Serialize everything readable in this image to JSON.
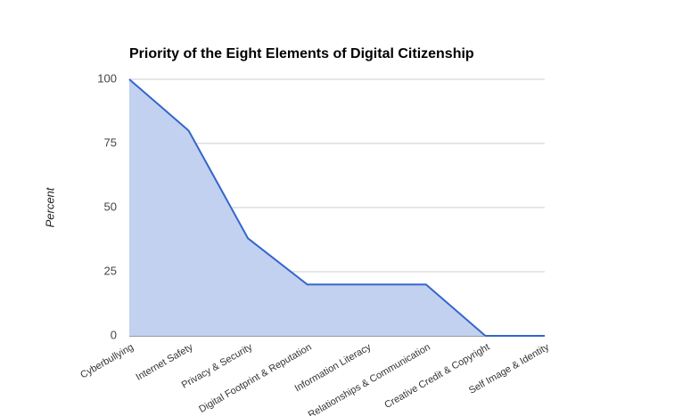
{
  "chart_data": {
    "type": "area",
    "title": "Priority of the Eight Elements of Digital Citizenship",
    "ylabel": "Percent",
    "categories": [
      "Cyberbullying",
      "Internet Safety",
      "Privacy & Security",
      "Digital Footprint & Reputation",
      "Information Literacy",
      "Relationships & Communication",
      "Creative Credit & Copyright",
      "Self Image & Identity"
    ],
    "values": [
      100,
      80,
      38,
      20,
      20,
      20,
      0,
      0
    ],
    "color": "#3366cc",
    "fill": "#c3d1f0",
    "ylim": [
      0,
      100
    ],
    "yticks": [
      0,
      25,
      50,
      75,
      100
    ],
    "grid": true
  }
}
